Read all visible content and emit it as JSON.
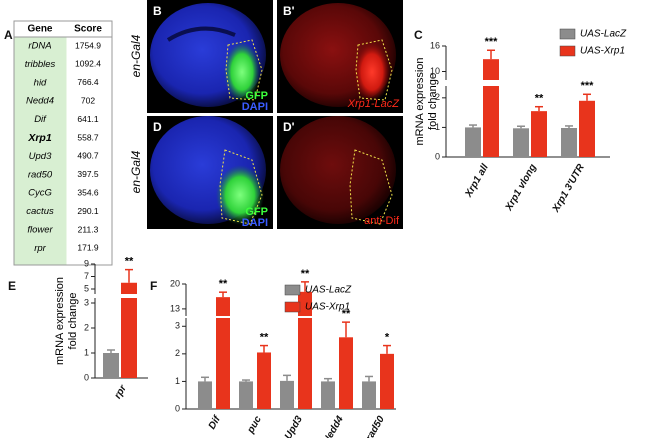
{
  "table": {
    "letter": "A",
    "header": [
      "Gene",
      "Score"
    ],
    "emphasized_row": 5,
    "rows": [
      [
        "rDNA",
        "1754.9"
      ],
      [
        "tribbles",
        "1092.4"
      ],
      [
        "hid",
        "766.4"
      ],
      [
        "Nedd4",
        "702"
      ],
      [
        "Dif",
        "641.1"
      ],
      [
        "Xrp1",
        "558.7"
      ],
      [
        "Upd3",
        "490.7"
      ],
      [
        "rad50",
        "397.5"
      ],
      [
        "CycG",
        "354.6"
      ],
      [
        "cactus",
        "290.1"
      ],
      [
        "flower",
        "211.3"
      ],
      [
        "rpr",
        "171.9"
      ]
    ]
  },
  "images": [
    {
      "letter": "B",
      "labels": [
        "GFP",
        "DAPI"
      ]
    },
    {
      "letter": "B'",
      "labels": [
        "Xrp1-LacZ"
      ]
    },
    {
      "letter": "D",
      "labels": [
        "GFP",
        "DAPI"
      ]
    },
    {
      "letter": "D'",
      "labels": [
        "anti-Dif"
      ]
    }
  ],
  "row_labels": [
    "en-Gal4",
    "en-Gal4"
  ],
  "chart_data": [
    {
      "type": "bar",
      "letter": "C",
      "ylabel": [
        "mRNA expression",
        "fold change"
      ],
      "categories": [
        "Xrp1 all",
        "Xrp1 vlong",
        "Xrp1 3'UTR"
      ],
      "series": [
        {
          "name": "UAS-LacZ",
          "color": "#8c8c8c",
          "values": [
            1.0,
            0.97,
            0.98
          ],
          "errors": [
            0.08,
            0.07,
            0.07
          ]
        },
        {
          "name": "UAS-Xrp1",
          "color": "#e8341c",
          "values": [
            12.9,
            1.55,
            1.9
          ],
          "errors": [
            2.1,
            0.15,
            0.22
          ]
        }
      ],
      "significance": [
        "***",
        "**",
        "***"
      ],
      "ylim": [
        0,
        16
      ],
      "ybreak": [
        2.4,
        8
      ],
      "yticks": [
        0,
        1,
        2,
        10,
        16
      ],
      "legend": "upper right"
    },
    {
      "type": "bar",
      "letter": "E",
      "ylabel": [
        "mRNA expression",
        "fold change"
      ],
      "categories": [
        "rpr"
      ],
      "series": [
        {
          "name": "UAS-LacZ",
          "color": "#8c8c8c",
          "values": [
            1.0
          ],
          "errors": [
            0.12
          ]
        },
        {
          "name": "UAS-Xrp1",
          "color": "#e8341c",
          "values": [
            6.0
          ],
          "errors": [
            2.1
          ]
        }
      ],
      "significance": [
        "**"
      ],
      "ylim": [
        0,
        9
      ],
      "ybreak": [
        3.2,
        4.2
      ],
      "yticks": [
        0,
        1,
        2,
        3,
        5,
        7,
        9
      ]
    },
    {
      "type": "bar",
      "letter": "F",
      "categories": [
        "Dif",
        "puc",
        "Upd3",
        "Nedd4",
        "rad50"
      ],
      "series": [
        {
          "name": "UAS-LacZ",
          "color": "#8c8c8c",
          "values": [
            1.0,
            1.0,
            1.02,
            1.0,
            1.0
          ],
          "errors": [
            0.15,
            0.05,
            0.2,
            0.1,
            0.18
          ]
        },
        {
          "name": "UAS-Xrp1",
          "color": "#e8341c",
          "values": [
            16.3,
            2.05,
            17.8,
            2.6,
            2.0
          ],
          "errors": [
            1.4,
            0.25,
            2.8,
            0.55,
            0.3
          ]
        }
      ],
      "significance": [
        "**",
        "**",
        "**",
        "**",
        "*"
      ],
      "ylim": [
        0,
        20
      ],
      "ybreak": [
        3.3,
        11
      ],
      "yticks": [
        0,
        1,
        2,
        3,
        13,
        20
      ],
      "legend": "upper left"
    }
  ]
}
